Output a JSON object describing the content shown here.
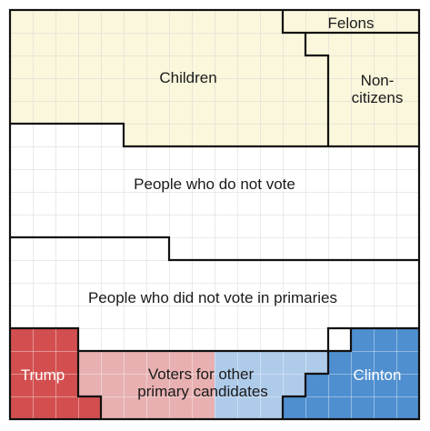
{
  "labels": {
    "felons": "Felons",
    "children": "Children",
    "noncitizens_line1": "Non-",
    "noncitizens_line2": "citizens",
    "nonvoters": "People who do not vote",
    "primary_nonvoters": "People who did not vote in primaries",
    "trump": "Trump",
    "other_line1": "Voters for other",
    "other_line2": "primary candidates",
    "clinton": "Clinton"
  },
  "colors": {
    "ineligible_fill": "#fbf7dc",
    "trump": "#d34f4f",
    "other_republicans": "#e8b0b0",
    "other_democrats": "#aecbea",
    "clinton": "#4f8fcf",
    "white_grid": "#d5d5d5",
    "colored_grid": "#ffffff",
    "border": "#111111"
  }
}
